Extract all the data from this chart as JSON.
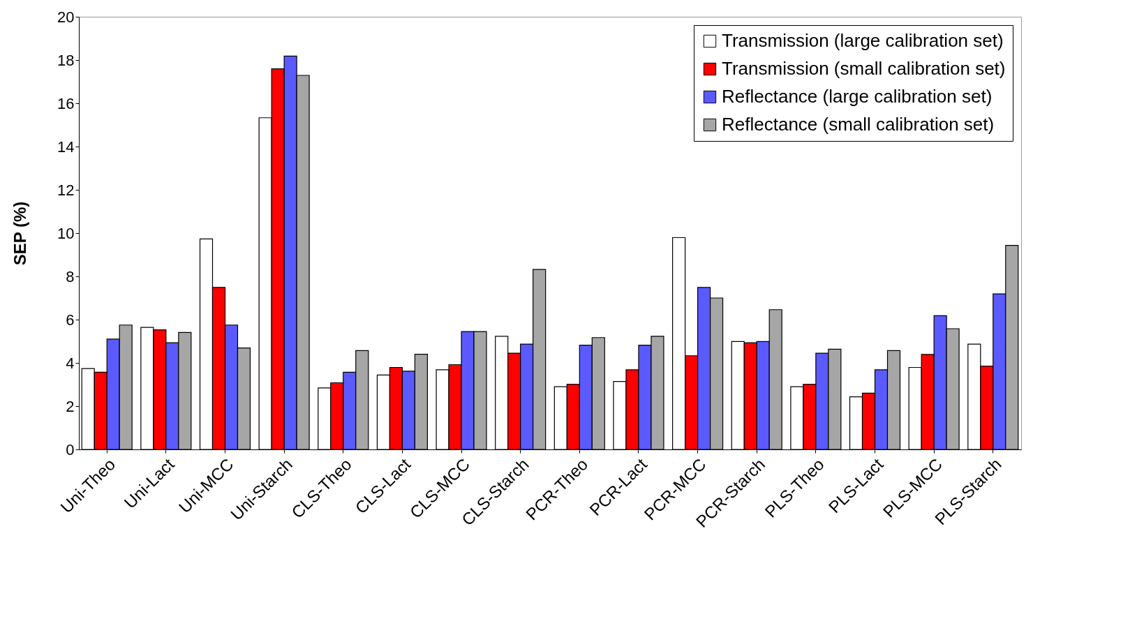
{
  "chart_data": {
    "type": "bar",
    "ylabel": "SEP (%)",
    "categories": [
      "Uni-Theo",
      "Uni-Lact",
      "Uni-MCC",
      "Uni-Starch",
      "CLS-Theo",
      "CLS-Lact",
      "CLS-MCC",
      "CLS-Starch",
      "PCR-Theo",
      "PCR-Lact",
      "PCR-MCC",
      "PCR-Starch",
      "PLS-Theo",
      "PLS-Lact",
      "PLS-MCC",
      "PLS-Starch"
    ],
    "series": [
      {
        "name": "Transmission (large calibration set)",
        "color": "#ffffff",
        "values": [
          3.74,
          5.64,
          9.73,
          15.33,
          2.84,
          3.44,
          3.68,
          5.23,
          2.9,
          3.14,
          9.79,
          4.99,
          2.9,
          2.43,
          3.79,
          4.87
        ]
      },
      {
        "name": "Transmission (small calibration set)",
        "color": "#ff0000",
        "values": [
          3.57,
          5.53,
          7.49,
          17.59,
          3.08,
          3.79,
          3.92,
          4.45,
          3.01,
          3.68,
          4.33,
          4.93,
          3.01,
          2.6,
          4.39,
          3.85
        ]
      },
      {
        "name": "Reflectance (large calibration set)",
        "color": "#5a5aff",
        "values": [
          5.1,
          4.93,
          5.75,
          18.18,
          3.57,
          3.62,
          5.45,
          4.87,
          4.82,
          4.82,
          7.49,
          4.99,
          4.45,
          3.68,
          6.18,
          7.19
        ]
      },
      {
        "name": "Reflectance (small calibration set)",
        "color": "#a6a6a6",
        "values": [
          5.75,
          5.41,
          4.69,
          17.29,
          4.57,
          4.4,
          5.45,
          8.32,
          5.17,
          5.23,
          7.0,
          6.46,
          4.63,
          4.57,
          5.58,
          9.43
        ]
      }
    ],
    "ylim": [
      0,
      20
    ],
    "yticks": [
      0,
      2,
      4,
      6,
      8,
      10,
      12,
      14,
      16,
      18,
      20
    ],
    "grid": false,
    "legend": "top right"
  }
}
